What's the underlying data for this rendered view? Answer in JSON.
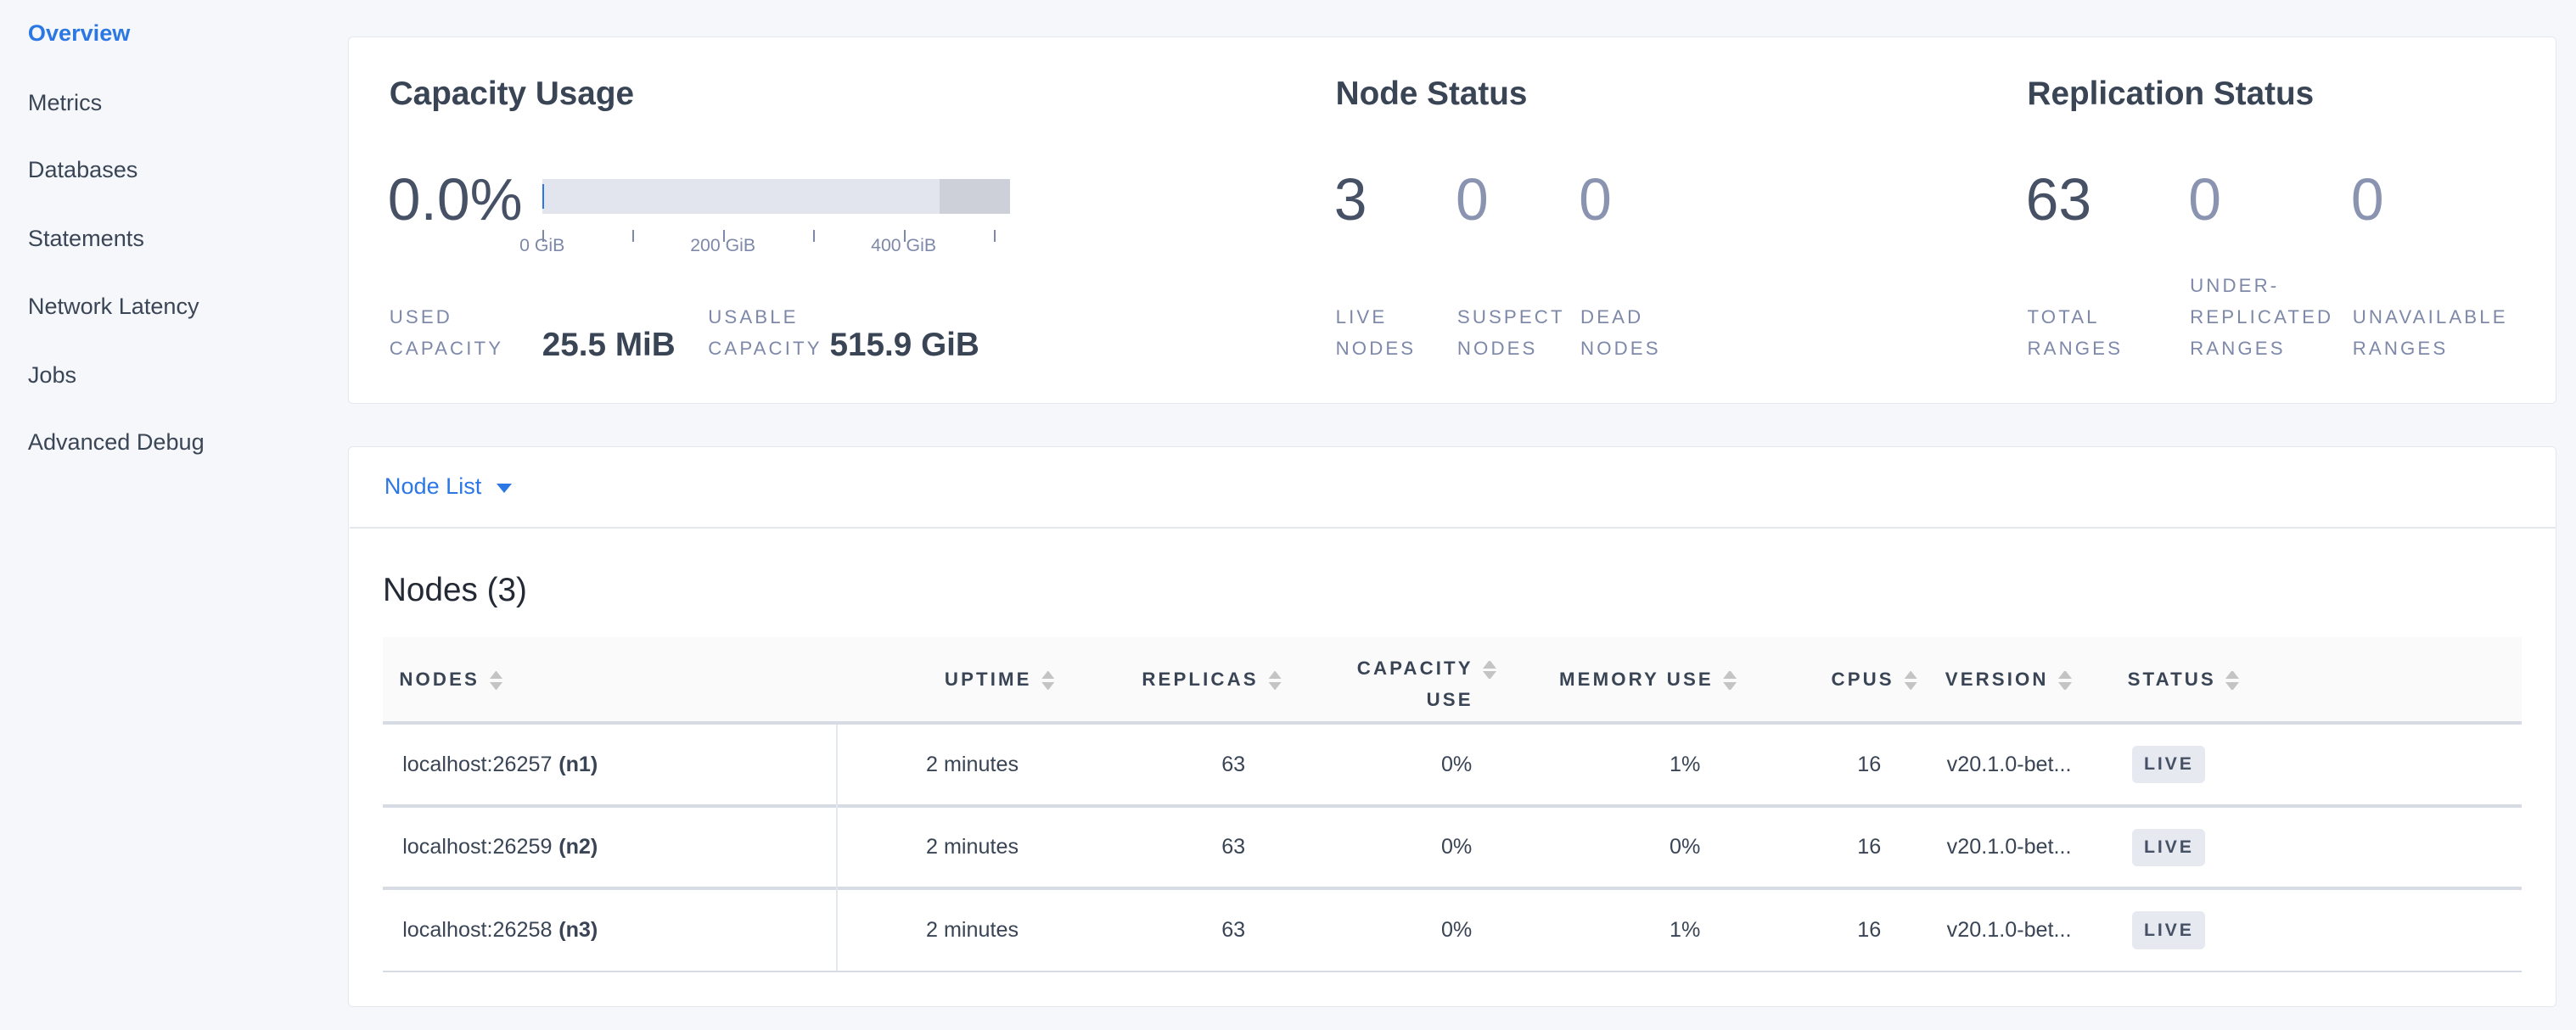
{
  "sidebar": {
    "items": [
      {
        "label": "Overview",
        "active": true
      },
      {
        "label": "Metrics"
      },
      {
        "label": "Databases"
      },
      {
        "label": "Statements"
      },
      {
        "label": "Network Latency"
      },
      {
        "label": "Jobs"
      },
      {
        "label": "Advanced Debug"
      }
    ]
  },
  "colors": {
    "accent": "#2b78e4",
    "bar_used": "#e2e5ee",
    "bar_unavailable": "#cdd0d8"
  },
  "capacity": {
    "title": "Capacity Usage",
    "percent": "0.0%",
    "percent_value": 0.0,
    "axis_labels": [
      "0 GiB",
      "200 GiB",
      "400 GiB"
    ],
    "used_label_1": "USED",
    "used_label_2": "CAPACITY",
    "used_value": "25.5 MiB",
    "usable_label_1": "USABLE",
    "usable_label_2": "CAPACITY",
    "usable_value": "515.9 GiB"
  },
  "node_status": {
    "title": "Node Status",
    "live": "3",
    "live_l1": "LIVE",
    "live_l2": "NODES",
    "suspect": "0",
    "suspect_l1": "SUSPECT",
    "suspect_l2": "NODES",
    "dead": "0",
    "dead_l1": "DEAD",
    "dead_l2": "NODES"
  },
  "replication": {
    "title": "Replication Status",
    "total": "63",
    "total_l1": "TOTAL",
    "total_l2": "RANGES",
    "under": "0",
    "under_l1": "UNDER-",
    "under_l2": "REPLICATED",
    "under_l3": "RANGES",
    "unavail": "0",
    "unavail_l1": "UNAVAILABLE",
    "unavail_l2": "RANGES"
  },
  "node_list": {
    "dropdown": "Node List",
    "heading": "Nodes (3)",
    "columns": {
      "nodes": "NODES",
      "uptime": "UPTIME",
      "replicas": "REPLICAS",
      "capacity_1": "CAPACITY",
      "capacity_2": "USE",
      "memory": "MEMORY USE",
      "cpus": "CPUS",
      "version": "VERSION",
      "status": "STATUS"
    },
    "rows": [
      {
        "addr": "localhost:26257",
        "id": "(n1)",
        "uptime": "2 minutes",
        "replicas": "63",
        "capacity": "0%",
        "memory": "1%",
        "cpus": "16",
        "version": "v20.1.0-bet...",
        "status": "LIVE"
      },
      {
        "addr": "localhost:26259",
        "id": "(n2)",
        "uptime": "2 minutes",
        "replicas": "63",
        "capacity": "0%",
        "memory": "0%",
        "cpus": "16",
        "version": "v20.1.0-bet...",
        "status": "LIVE"
      },
      {
        "addr": "localhost:26258",
        "id": "(n3)",
        "uptime": "2 minutes",
        "replicas": "63",
        "capacity": "0%",
        "memory": "1%",
        "cpus": "16",
        "version": "v20.1.0-bet...",
        "status": "LIVE"
      }
    ]
  }
}
